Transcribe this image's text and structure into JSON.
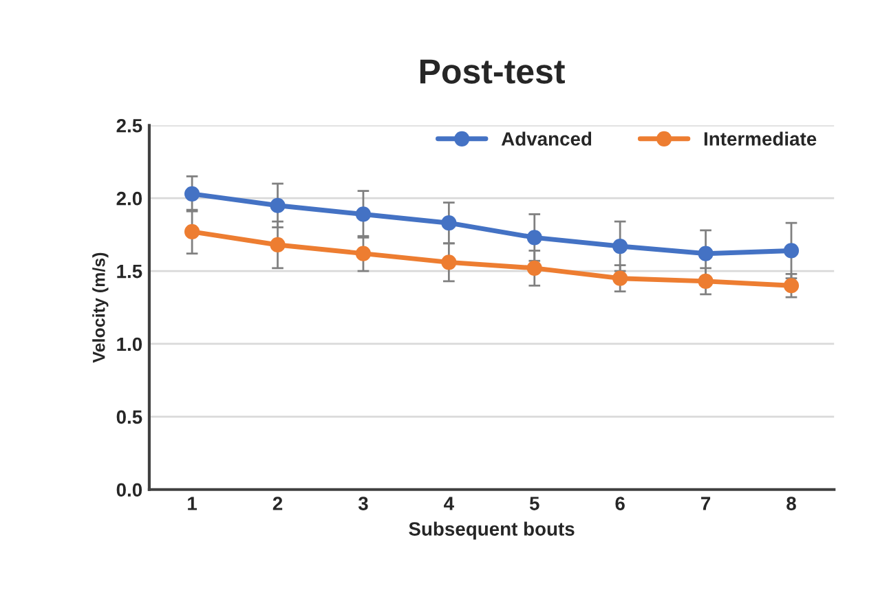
{
  "chart_data": {
    "type": "line",
    "title": "Post-test",
    "xlabel": "Subsequent bouts",
    "ylabel": "Velocity (m/s)",
    "categories": [
      "1",
      "2",
      "3",
      "4",
      "5",
      "6",
      "7",
      "8"
    ],
    "series": [
      {
        "name": "Advanced",
        "color": "#4472c4",
        "values": [
          2.03,
          1.95,
          1.89,
          1.83,
          1.73,
          1.67,
          1.62,
          1.64
        ],
        "errors": [
          0.12,
          0.15,
          0.16,
          0.14,
          0.16,
          0.17,
          0.16,
          0.19
        ]
      },
      {
        "name": "Intermediate",
        "color": "#ed7d31",
        "values": [
          1.77,
          1.68,
          1.62,
          1.56,
          1.52,
          1.45,
          1.43,
          1.4
        ],
        "errors": [
          0.15,
          0.16,
          0.12,
          0.13,
          0.12,
          0.09,
          0.09,
          0.08
        ]
      }
    ],
    "ylim": [
      0,
      2.5
    ],
    "yticks": [
      {
        "value": 0,
        "label": "0.0"
      },
      {
        "value": 0.5,
        "label": "0.5"
      },
      {
        "value": 1,
        "label": "1.0"
      },
      {
        "value": 1.5,
        "label": "1.5"
      },
      {
        "value": 2,
        "label": "2.0"
      },
      {
        "value": 2.5,
        "label": "2.5"
      }
    ],
    "grid": "y",
    "legend": "top right",
    "marker": "circle",
    "line_style": "solid"
  }
}
